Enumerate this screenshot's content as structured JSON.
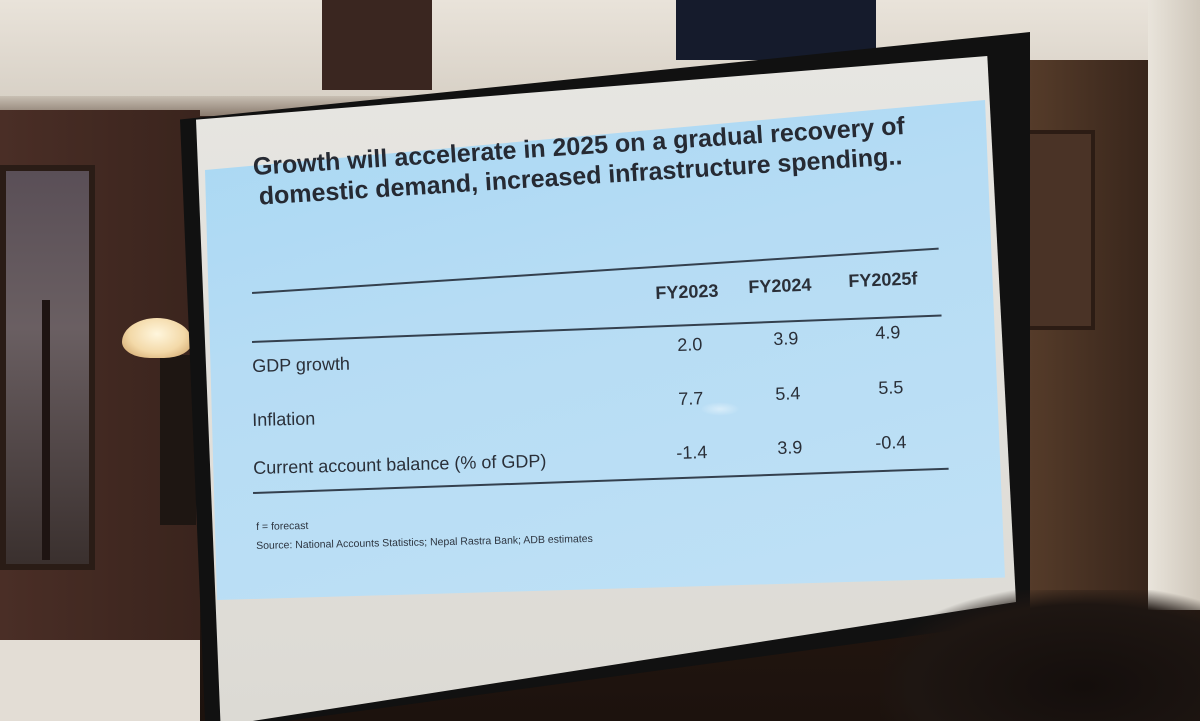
{
  "slide": {
    "title_line1": "Growth will accelerate in 2025 on a gradual recovery of",
    "title_line2": "domestic demand, increased infrastructure spending..",
    "columns": [
      "FY2023",
      "FY2024",
      "FY2025f"
    ],
    "rows": [
      {
        "label": "GDP growth",
        "values": [
          "2.0",
          "3.9",
          "4.9"
        ]
      },
      {
        "label": "Inflation",
        "values": [
          "7.7",
          "5.4",
          "5.5"
        ]
      },
      {
        "label": "Current account balance (% of GDP)",
        "values": [
          "-1.4",
          "3.9",
          "-0.4"
        ]
      }
    ],
    "footnote": "f = forecast",
    "source": "Source: National Accounts Statistics; Nepal Rastra Bank; ADB estimates"
  },
  "colors": {
    "slide_background": "#b6dcf4",
    "text": "#2a2f38",
    "rule": "#34404e"
  }
}
